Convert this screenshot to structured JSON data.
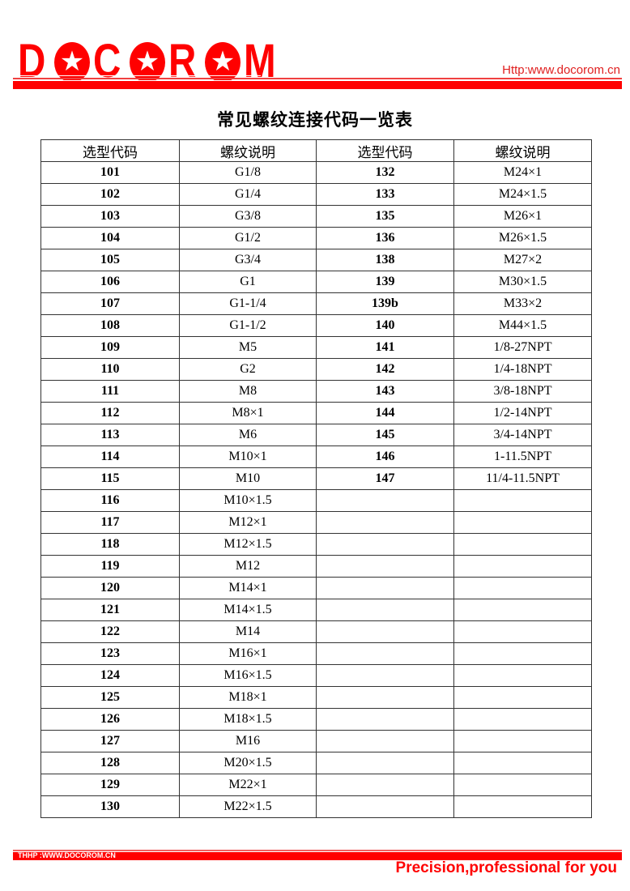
{
  "header": {
    "logo_text": "DOCOROM",
    "logo_letters": [
      "D",
      "O",
      "C",
      "O",
      "R",
      "O",
      "M"
    ],
    "url": "Http:www.docorom.cn",
    "brand_color": "#ff0000"
  },
  "title": "常见螺纹连接代码一览表",
  "table": {
    "headers": [
      "选型代码",
      "螺纹说明",
      "选型代码",
      "螺纹说明"
    ],
    "left": [
      [
        "101",
        "G1/8"
      ],
      [
        "102",
        "G1/4"
      ],
      [
        "103",
        "G3/8"
      ],
      [
        "104",
        "G1/2"
      ],
      [
        "105",
        "G3/4"
      ],
      [
        "106",
        "G1"
      ],
      [
        "107",
        "G1-1/4"
      ],
      [
        "108",
        "G1-1/2"
      ],
      [
        "109",
        "M5"
      ],
      [
        "110",
        "G2"
      ],
      [
        "111",
        "M8"
      ],
      [
        "112",
        "M8×1"
      ],
      [
        "113",
        "M6"
      ],
      [
        "114",
        "M10×1"
      ],
      [
        "115",
        "M10"
      ],
      [
        "116",
        "M10×1.5"
      ],
      [
        "117",
        "M12×1"
      ],
      [
        "118",
        "M12×1.5"
      ],
      [
        "119",
        "M12"
      ],
      [
        "120",
        "M14×1"
      ],
      [
        "121",
        "M14×1.5"
      ],
      [
        "122",
        "M14"
      ],
      [
        "123",
        "M16×1"
      ],
      [
        "124",
        "M16×1.5"
      ],
      [
        "125",
        "M18×1"
      ],
      [
        "126",
        "M18×1.5"
      ],
      [
        "127",
        "M16"
      ],
      [
        "128",
        "M20×1.5"
      ],
      [
        "129",
        "M22×1"
      ],
      [
        "130",
        "M22×1.5"
      ]
    ],
    "right": [
      [
        "132",
        "M24×1"
      ],
      [
        "133",
        "M24×1.5"
      ],
      [
        "135",
        "M26×1"
      ],
      [
        "136",
        "M26×1.5"
      ],
      [
        "138",
        "M27×2"
      ],
      [
        "139",
        "M30×1.5"
      ],
      [
        "139b",
        "M33×2"
      ],
      [
        "140",
        "M44×1.5"
      ],
      [
        "141",
        "1/8-27NPT"
      ],
      [
        "142",
        "1/4-18NPT"
      ],
      [
        "143",
        "3/8-18NPT"
      ],
      [
        "144",
        "1/2-14NPT"
      ],
      [
        "145",
        "3/4-14NPT"
      ],
      [
        "146",
        "1-11.5NPT"
      ],
      [
        "147",
        "11/4-11.5NPT"
      ]
    ]
  },
  "footer": {
    "url": "THHP :WWW.DOCOROM.CN",
    "slogan": "Precision,professional for you"
  }
}
